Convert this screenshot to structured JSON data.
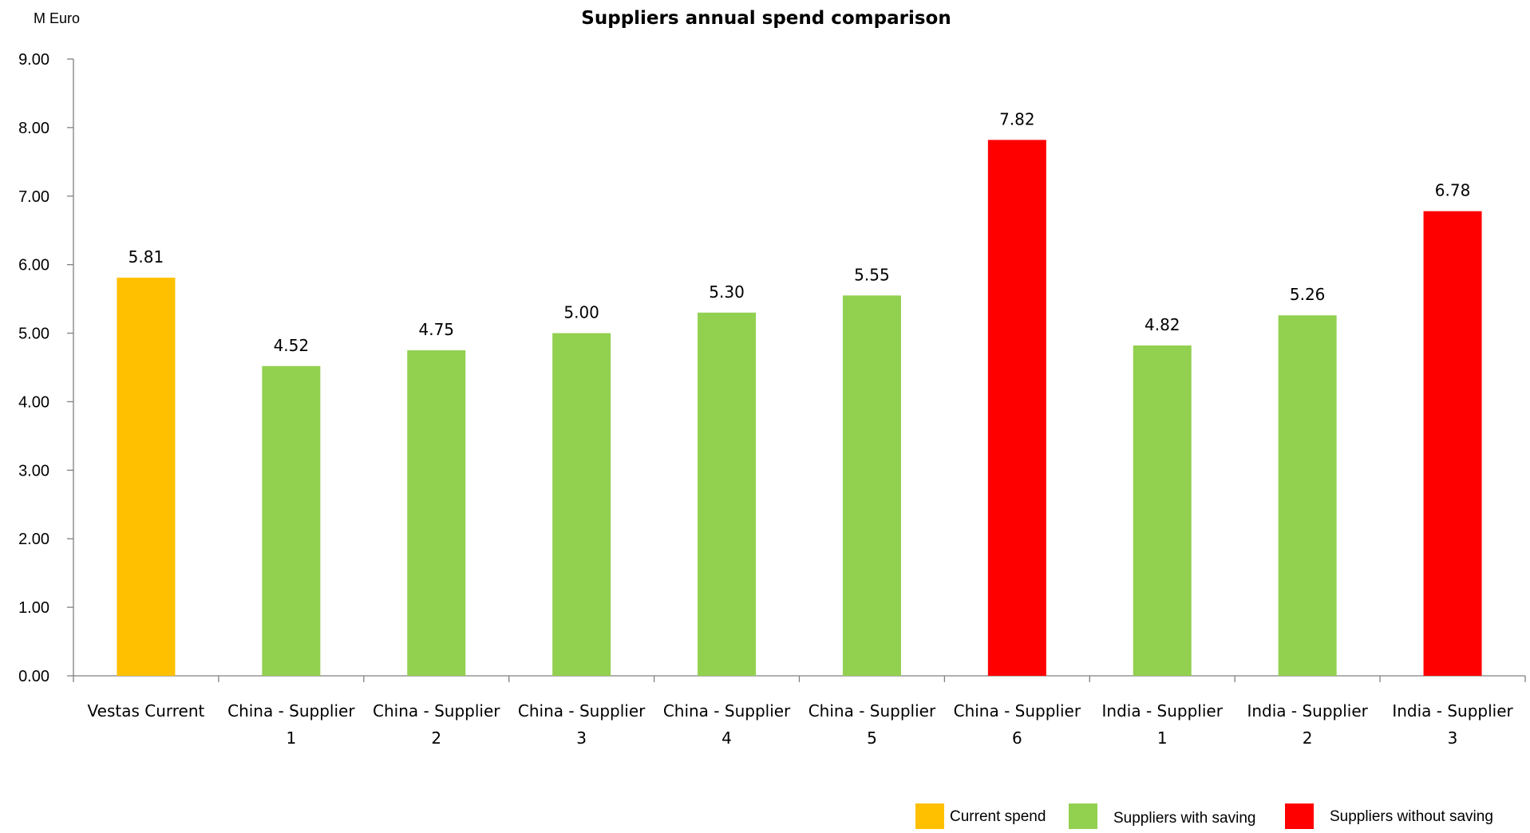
{
  "chart_data": {
    "type": "bar",
    "title": "Suppliers annual spend comparison",
    "ylabel": "M Euro",
    "xlabel": "",
    "ylim": [
      0,
      9
    ],
    "ytick_step": 1,
    "yticks": [
      "0.00",
      "1.00",
      "2.00",
      "3.00",
      "4.00",
      "5.00",
      "6.00",
      "7.00",
      "8.00",
      "9.00"
    ],
    "grid": false,
    "legend_position": "bottom-right",
    "categories": [
      [
        "Vestas Current"
      ],
      [
        "China - Supplier",
        "1"
      ],
      [
        "China - Supplier",
        "2"
      ],
      [
        "China - Supplier",
        "3"
      ],
      [
        "China - Supplier",
        "4"
      ],
      [
        "China - Supplier",
        "5"
      ],
      [
        "China - Supplier",
        "6"
      ],
      [
        "India - Supplier",
        "1"
      ],
      [
        "India - Supplier",
        "2"
      ],
      [
        "India - Supplier",
        "3"
      ]
    ],
    "values": [
      5.81,
      4.52,
      4.75,
      5.0,
      5.3,
      5.55,
      7.82,
      4.82,
      5.26,
      6.78
    ],
    "data_labels": [
      "5.81",
      "4.52",
      "4.75",
      "5.00",
      "5.30",
      "5.55",
      "7.82",
      "4.82",
      "5.26",
      "6.78"
    ],
    "groups": [
      "current",
      "saving",
      "saving",
      "saving",
      "saving",
      "saving",
      "nosaving",
      "saving",
      "saving",
      "nosaving"
    ],
    "legend": [
      {
        "key": "current",
        "label": "Current spend",
        "color": "#ffc000"
      },
      {
        "key": "saving",
        "label": "Suppliers with saving",
        "color": "#92d050"
      },
      {
        "key": "nosaving",
        "label": "Suppliers without saving",
        "color": "#ff0000"
      }
    ]
  }
}
